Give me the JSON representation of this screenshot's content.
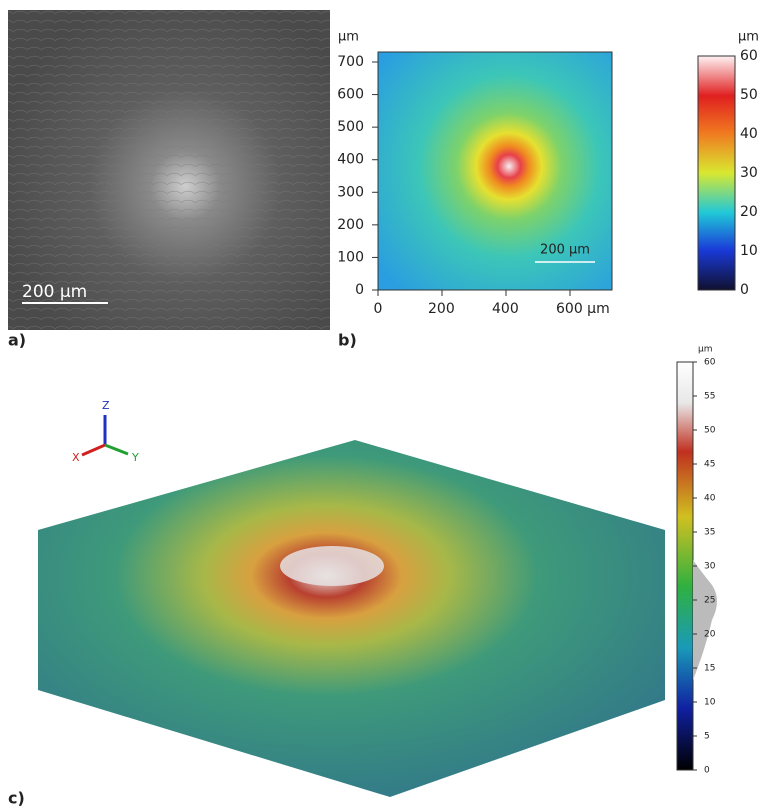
{
  "panels": [
    {
      "label": "a)",
      "scale_bar": "200  µm"
    },
    {
      "label": "b)",
      "unit": "µm",
      "y_ticks": [
        0,
        100,
        200,
        300,
        400,
        500,
        600,
        700
      ],
      "x_ticks": [
        0,
        200,
        400,
        "600 µm"
      ],
      "scale_bar": "200 µm",
      "colorbar_unit": "µm",
      "colorbar_ticks": [
        0,
        10,
        20,
        30,
        40,
        50,
        60
      ]
    },
    {
      "label": "c)",
      "axes": [
        "X",
        "Y",
        "Z"
      ],
      "colorbar_unit": "µm",
      "colorbar_ticks": [
        0,
        5,
        10,
        15,
        20,
        25,
        30,
        35,
        40,
        45,
        50,
        55,
        60
      ]
    }
  ]
}
